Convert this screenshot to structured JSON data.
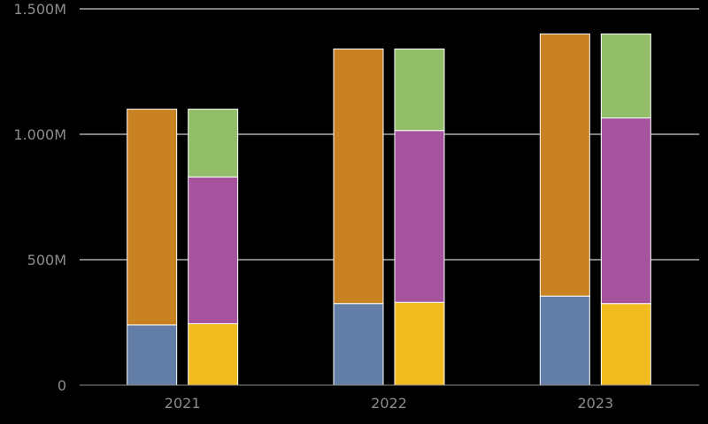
{
  "chart_data": {
    "type": "bar",
    "stacked": true,
    "grouped": true,
    "title": "",
    "xlabel": "",
    "ylabel": "",
    "categories": [
      "2021",
      "2022",
      "2023"
    ],
    "ylim": [
      0,
      1500
    ],
    "yticks": [
      {
        "value": 0,
        "label": "0"
      },
      {
        "value": 500,
        "label": "500M"
      },
      {
        "value": 1000,
        "label": "1.000M"
      },
      {
        "value": 1500,
        "label": "1.500M"
      }
    ],
    "grid": true,
    "legend": "none",
    "stacks": [
      {
        "segments": [
          {
            "color": "#637ea6",
            "values": [
              240,
              325,
              355
            ]
          },
          {
            "color": "#c98221",
            "values": [
              860,
              1015,
              1045
            ]
          }
        ]
      },
      {
        "segments": [
          {
            "color": "#f2bb1f",
            "values": [
              245,
              330,
              325
            ]
          },
          {
            "color": "#a5539d",
            "values": [
              585,
              685,
              740
            ]
          },
          {
            "color": "#92be6a",
            "values": [
              270,
              325,
              335
            ]
          }
        ]
      }
    ],
    "colors": {
      "background": "#000000",
      "grid": "#ffffff",
      "axis": "#8c8c8c",
      "bar_border": "#ffffff"
    }
  }
}
